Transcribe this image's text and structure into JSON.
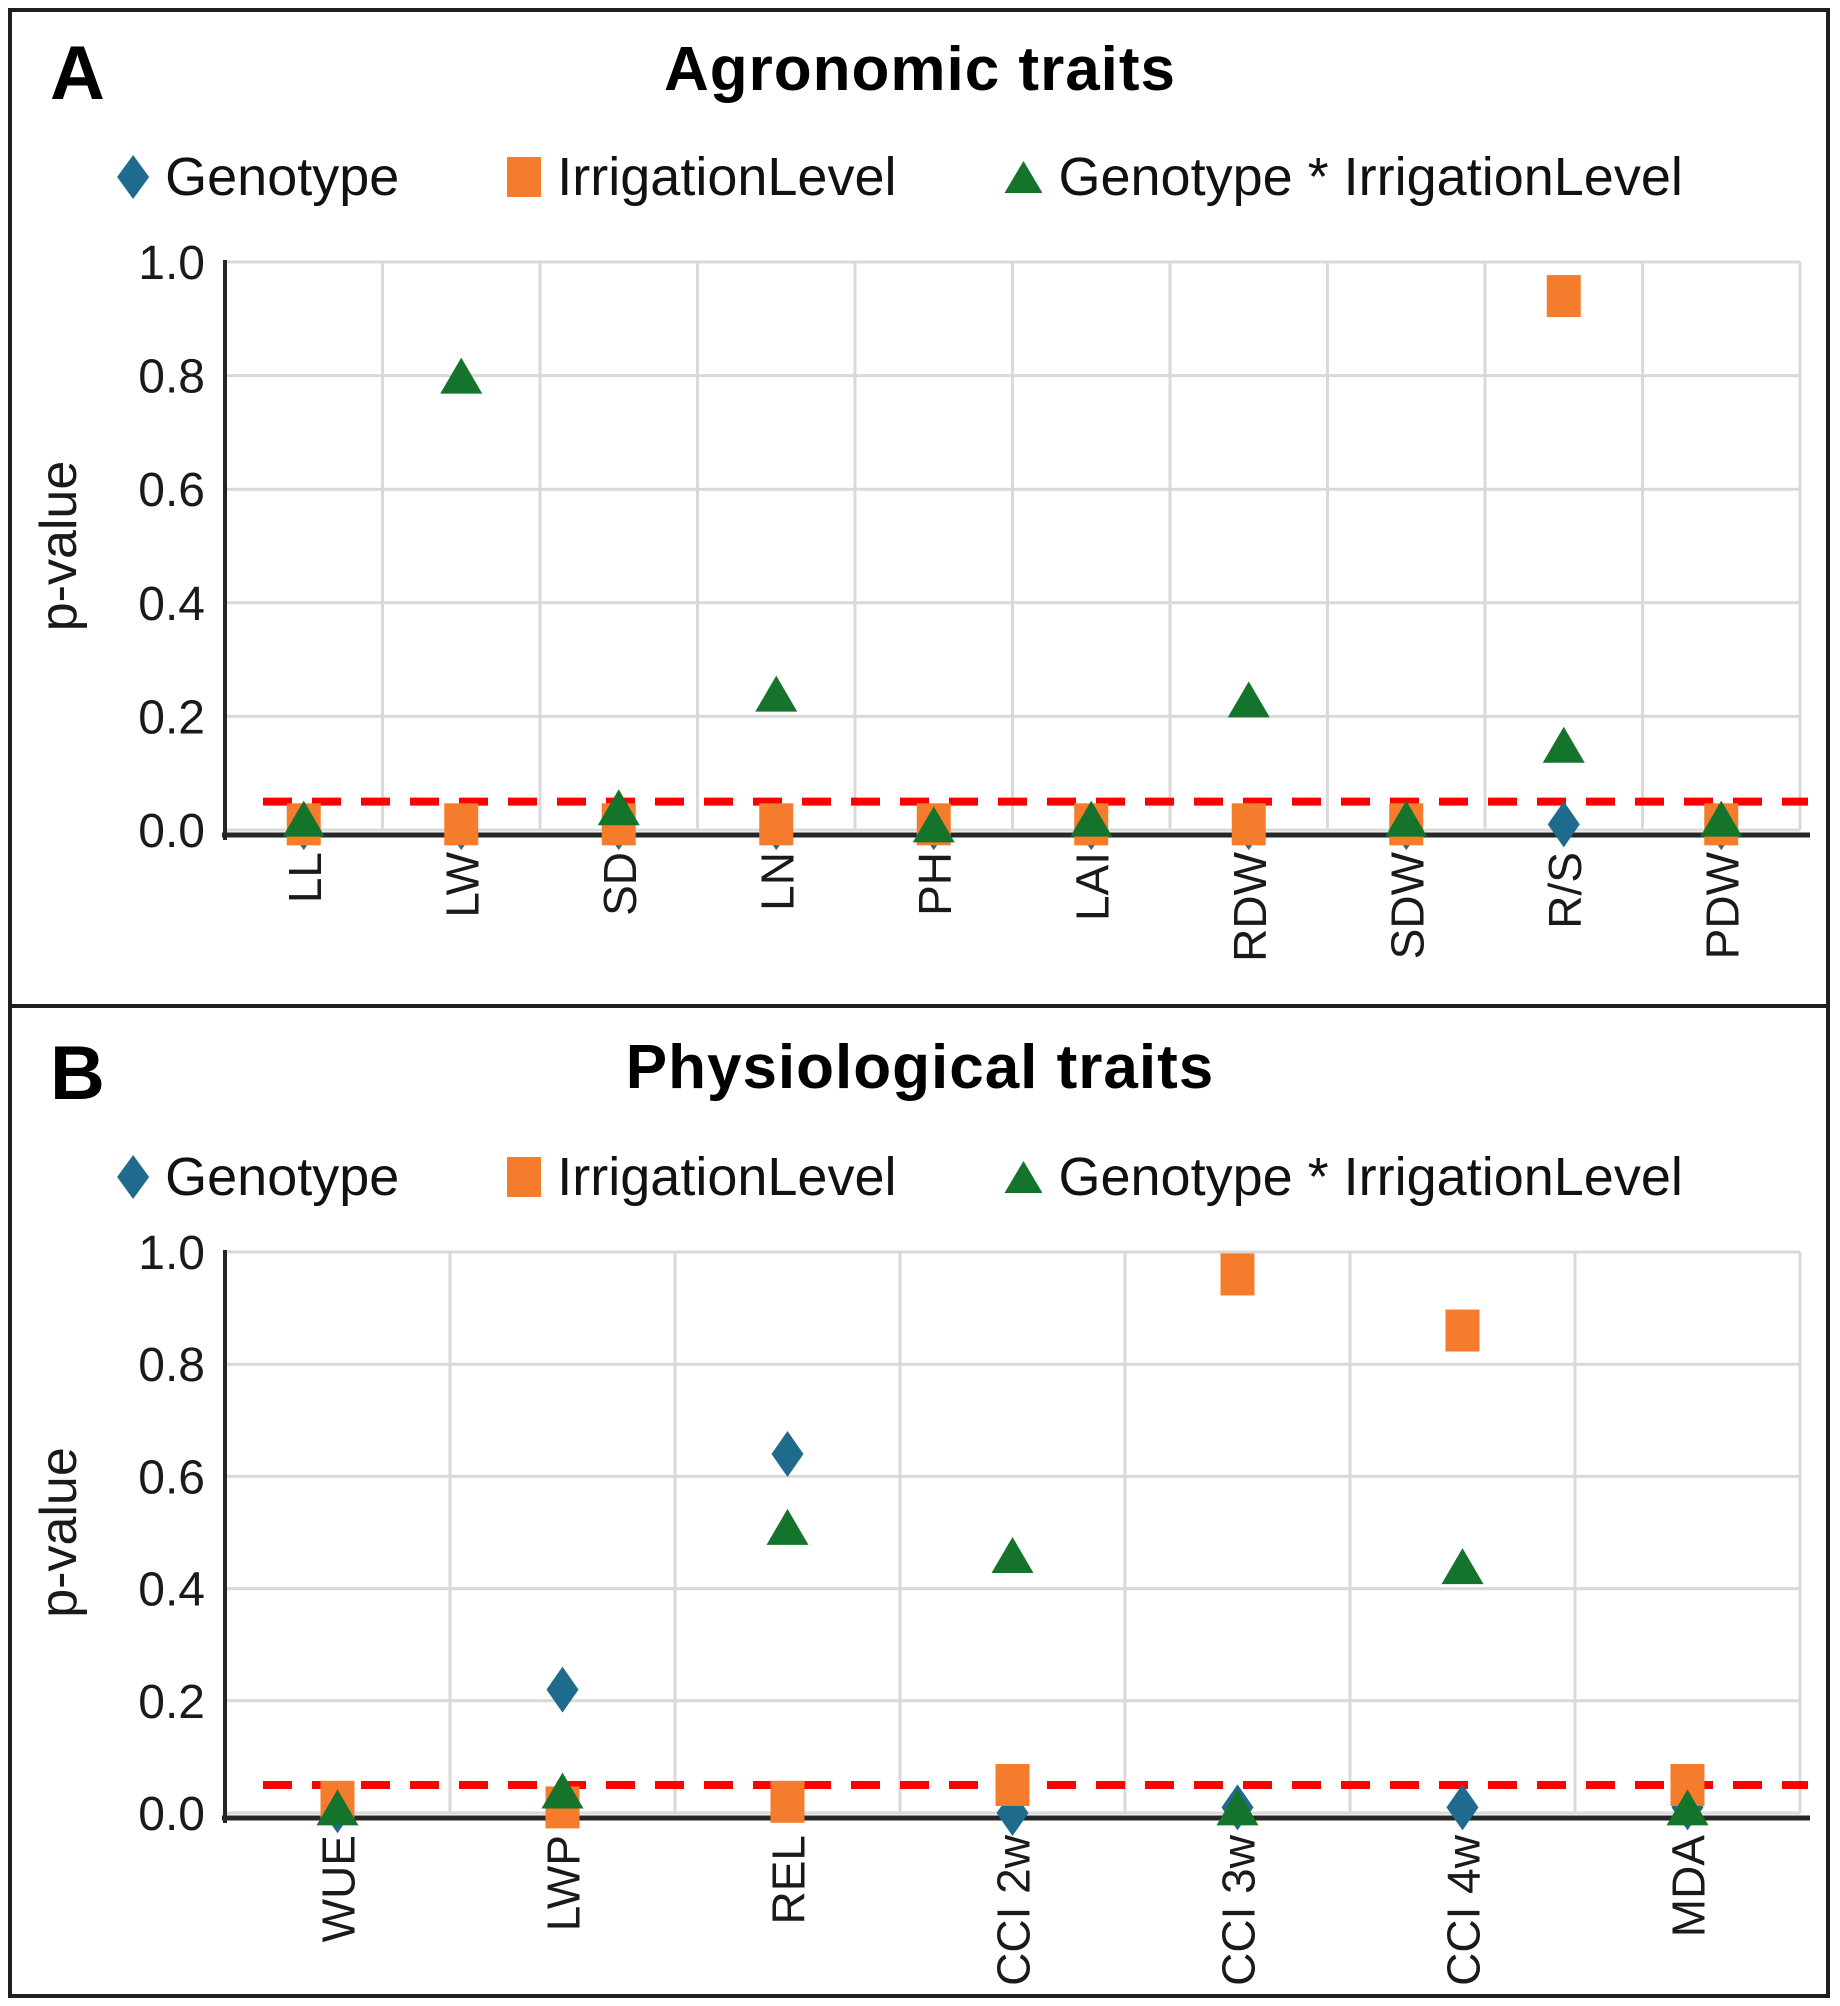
{
  "figure": {
    "panels": [
      {
        "letter": "A",
        "title": "Agronomic traits"
      },
      {
        "letter": "B",
        "title": "Physiological traits"
      }
    ]
  },
  "colors": {
    "genotype_blue": "#1F6B8E",
    "irrigation_orange": "#F57C2C",
    "interaction_green": "#15742B",
    "significance_red": "#FF0000",
    "gridline_gray": "#D9D9D9",
    "axis_dark": "#262626"
  },
  "chart_data": [
    {
      "panel_letter": "A",
      "type": "scatter",
      "title": "Agronomic traits",
      "ylabel": "p-value",
      "ylim": [
        0,
        1
      ],
      "yticks": [
        "1.0",
        "0.8",
        "0.6",
        "0.4",
        "0.2",
        "0.0"
      ],
      "grid": true,
      "legend_position": "top",
      "significance_line": 0.05,
      "categories": [
        "LL",
        "LW",
        "SD",
        "LN",
        "PH",
        "LAI",
        "RDW",
        "SDW",
        "R/S",
        "PDW"
      ],
      "series": [
        {
          "name": "Genotype",
          "marker": "diamond",
          "color": "#1F6B8E",
          "values": [
            0.005,
            0.005,
            0.005,
            0.005,
            0.005,
            0.005,
            0.005,
            0.005,
            0.01,
            0.005
          ]
        },
        {
          "name": "IrrigationLevel",
          "marker": "square",
          "color": "#F57C2C",
          "values": [
            0.01,
            0.01,
            0.01,
            0.01,
            0.01,
            0.01,
            0.01,
            0.01,
            0.94,
            0.01
          ]
        },
        {
          "name": "Genotype * IrrigationLevel",
          "marker": "triangle",
          "color": "#15742B",
          "values": [
            0.02,
            0.8,
            0.04,
            0.24,
            0.01,
            0.02,
            0.23,
            0.02,
            0.15,
            0.02
          ]
        }
      ]
    },
    {
      "panel_letter": "B",
      "type": "scatter",
      "title": "Physiological traits",
      "ylabel": "p-value",
      "ylim": [
        0,
        1
      ],
      "yticks": [
        "1.0",
        "0.8",
        "0.6",
        "0.4",
        "0.2",
        "0.0"
      ],
      "grid": true,
      "legend_position": "top",
      "significance_line": 0.05,
      "categories": [
        "WUE",
        "LWP",
        "REL",
        "CCI 2w",
        "CCI 3w",
        "CCI 4w",
        "MDA"
      ],
      "series": [
        {
          "name": "Genotype",
          "marker": "diamond",
          "color": "#1F6B8E",
          "values": [
            0.005,
            0.22,
            0.64,
            0.0,
            0.01,
            0.01,
            0.01
          ]
        },
        {
          "name": "IrrigationLevel",
          "marker": "square",
          "color": "#F57C2C",
          "values": [
            0.02,
            0.01,
            0.02,
            0.05,
            0.96,
            0.86,
            0.05
          ]
        },
        {
          "name": "Genotype * IrrigationLevel",
          "marker": "triangle",
          "color": "#15742B",
          "values": [
            0.01,
            0.04,
            0.51,
            0.46,
            0.01,
            0.44,
            0.01
          ]
        }
      ]
    }
  ]
}
